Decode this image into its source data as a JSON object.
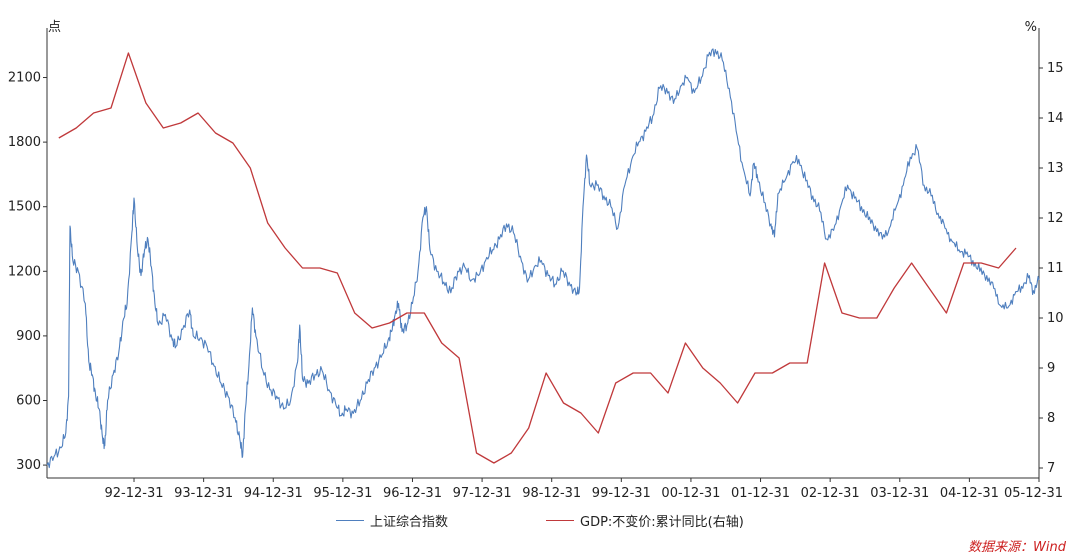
{
  "chart_data": {
    "type": "line",
    "left_unit": "点",
    "right_unit": "%",
    "x_tick_labels": [
      "92-12-31",
      "93-12-31",
      "94-12-31",
      "95-12-31",
      "96-12-31",
      "97-12-31",
      "98-12-31",
      "99-12-31",
      "00-12-31",
      "01-12-31",
      "02-12-31",
      "03-12-31",
      "04-12-31",
      "05-12-31"
    ],
    "x_range": [
      1991.75,
      2006.0
    ],
    "y_left": {
      "ticks": [
        300,
        600,
        900,
        1200,
        1500,
        1800,
        2100
      ],
      "range": [
        240,
        2330
      ]
    },
    "y_right": {
      "ticks": [
        7,
        8,
        9,
        10,
        11,
        12,
        13,
        14,
        15
      ],
      "range": [
        6.8,
        15.8
      ]
    },
    "grid": false,
    "legend_position": "bottom",
    "series": [
      {
        "name": "上证综合指数",
        "axis": "left",
        "color": "#4f7fbe",
        "points": [
          [
            1991.75,
            300
          ],
          [
            1991.85,
            340
          ],
          [
            1991.95,
            380
          ],
          [
            1992.02,
            450
          ],
          [
            1992.06,
            620
          ],
          [
            1992.08,
            1410
          ],
          [
            1992.12,
            1250
          ],
          [
            1992.2,
            1200
          ],
          [
            1992.3,
            1050
          ],
          [
            1992.35,
            780
          ],
          [
            1992.4,
            720
          ],
          [
            1992.45,
            620
          ],
          [
            1992.5,
            560
          ],
          [
            1992.55,
            420
          ],
          [
            1992.58,
            390
          ],
          [
            1992.62,
            600
          ],
          [
            1992.7,
            720
          ],
          [
            1992.78,
            820
          ],
          [
            1992.85,
            980
          ],
          [
            1992.9,
            1050
          ],
          [
            1992.97,
            1380
          ],
          [
            1993.0,
            1540
          ],
          [
            1993.05,
            1300
          ],
          [
            1993.1,
            1180
          ],
          [
            1993.15,
            1300
          ],
          [
            1993.2,
            1350
          ],
          [
            1993.25,
            1220
          ],
          [
            1993.3,
            1050
          ],
          [
            1993.35,
            950
          ],
          [
            1993.45,
            1000
          ],
          [
            1993.55,
            880
          ],
          [
            1993.6,
            850
          ],
          [
            1993.7,
            930
          ],
          [
            1993.8,
            1020
          ],
          [
            1993.85,
            900
          ],
          [
            1993.95,
            890
          ],
          [
            1994.05,
            850
          ],
          [
            1994.15,
            760
          ],
          [
            1994.25,
            680
          ],
          [
            1994.35,
            620
          ],
          [
            1994.45,
            520
          ],
          [
            1994.52,
            420
          ],
          [
            1994.56,
            340
          ],
          [
            1994.6,
            560
          ],
          [
            1994.65,
            760
          ],
          [
            1994.7,
            1030
          ],
          [
            1994.75,
            900
          ],
          [
            1994.85,
            740
          ],
          [
            1994.95,
            650
          ],
          [
            1995.05,
            620
          ],
          [
            1995.15,
            560
          ],
          [
            1995.25,
            600
          ],
          [
            1995.35,
            780
          ],
          [
            1995.38,
            950
          ],
          [
            1995.42,
            700
          ],
          [
            1995.5,
            680
          ],
          [
            1995.6,
            720
          ],
          [
            1995.7,
            740
          ],
          [
            1995.8,
            650
          ],
          [
            1995.9,
            580
          ],
          [
            1995.98,
            530
          ],
          [
            1996.05,
            560
          ],
          [
            1996.15,
            540
          ],
          [
            1996.25,
            600
          ],
          [
            1996.35,
            680
          ],
          [
            1996.45,
            750
          ],
          [
            1996.55,
            800
          ],
          [
            1996.65,
            880
          ],
          [
            1996.7,
            920
          ],
          [
            1996.75,
            1000
          ],
          [
            1996.8,
            1050
          ],
          [
            1996.85,
            920
          ],
          [
            1996.92,
            950
          ],
          [
            1997.0,
            1050
          ],
          [
            1997.08,
            1200
          ],
          [
            1997.15,
            1450
          ],
          [
            1997.2,
            1500
          ],
          [
            1997.25,
            1300
          ],
          [
            1997.35,
            1200
          ],
          [
            1997.45,
            1150
          ],
          [
            1997.55,
            1100
          ],
          [
            1997.65,
            1200
          ],
          [
            1997.75,
            1220
          ],
          [
            1997.85,
            1160
          ],
          [
            1997.95,
            1180
          ],
          [
            1998.05,
            1250
          ],
          [
            1998.15,
            1300
          ],
          [
            1998.25,
            1350
          ],
          [
            1998.35,
            1420
          ],
          [
            1998.45,
            1380
          ],
          [
            1998.55,
            1270
          ],
          [
            1998.65,
            1150
          ],
          [
            1998.75,
            1220
          ],
          [
            1998.85,
            1250
          ],
          [
            1998.95,
            1180
          ],
          [
            1999.05,
            1140
          ],
          [
            1999.15,
            1200
          ],
          [
            1999.25,
            1150
          ],
          [
            1999.35,
            1090
          ],
          [
            1999.4,
            1120
          ],
          [
            1999.45,
            1500
          ],
          [
            1999.5,
            1740
          ],
          [
            1999.55,
            1600
          ],
          [
            1999.65,
            1600
          ],
          [
            1999.75,
            1550
          ],
          [
            1999.85,
            1500
          ],
          [
            1999.95,
            1400
          ],
          [
            2000.05,
            1600
          ],
          [
            2000.15,
            1720
          ],
          [
            2000.25,
            1800
          ],
          [
            2000.35,
            1850
          ],
          [
            2000.45,
            1920
          ],
          [
            2000.55,
            2050
          ],
          [
            2000.65,
            2050
          ],
          [
            2000.75,
            1980
          ],
          [
            2000.85,
            2060
          ],
          [
            2000.95,
            2100
          ],
          [
            2001.05,
            2030
          ],
          [
            2001.15,
            2100
          ],
          [
            2001.25,
            2200
          ],
          [
            2001.35,
            2230
          ],
          [
            2001.45,
            2180
          ],
          [
            2001.55,
            2050
          ],
          [
            2001.65,
            1850
          ],
          [
            2001.75,
            1680
          ],
          [
            2001.85,
            1550
          ],
          [
            2001.9,
            1700
          ],
          [
            2001.95,
            1650
          ],
          [
            2002.05,
            1520
          ],
          [
            2002.15,
            1420
          ],
          [
            2002.2,
            1360
          ],
          [
            2002.25,
            1560
          ],
          [
            2002.35,
            1620
          ],
          [
            2002.45,
            1700
          ],
          [
            2002.55,
            1720
          ],
          [
            2002.65,
            1620
          ],
          [
            2002.75,
            1550
          ],
          [
            2002.85,
            1480
          ],
          [
            2002.95,
            1350
          ],
          [
            2003.05,
            1390
          ],
          [
            2003.15,
            1500
          ],
          [
            2003.25,
            1600
          ],
          [
            2003.35,
            1540
          ],
          [
            2003.45,
            1500
          ],
          [
            2003.55,
            1440
          ],
          [
            2003.65,
            1410
          ],
          [
            2003.75,
            1350
          ],
          [
            2003.85,
            1400
          ],
          [
            2003.95,
            1500
          ],
          [
            2004.05,
            1600
          ],
          [
            2004.15,
            1730
          ],
          [
            2004.25,
            1770
          ],
          [
            2004.35,
            1600
          ],
          [
            2004.45,
            1550
          ],
          [
            2004.55,
            1470
          ],
          [
            2004.65,
            1400
          ],
          [
            2004.75,
            1340
          ],
          [
            2004.85,
            1300
          ],
          [
            2004.95,
            1280
          ],
          [
            2005.05,
            1250
          ],
          [
            2005.15,
            1200
          ],
          [
            2005.25,
            1180
          ],
          [
            2005.35,
            1120
          ],
          [
            2005.45,
            1040
          ],
          [
            2005.55,
            1030
          ],
          [
            2005.65,
            1090
          ],
          [
            2005.75,
            1130
          ],
          [
            2005.85,
            1170
          ],
          [
            2005.92,
            1110
          ],
          [
            2006.0,
            1160
          ]
        ]
      },
      {
        "name": "GDP:不变价:累计同比(右轴)",
        "axis": "right",
        "color": "#c0393b",
        "points": [
          [
            1991.92,
            13.6
          ],
          [
            1992.17,
            13.8
          ],
          [
            1992.42,
            14.1
          ],
          [
            1992.67,
            14.2
          ],
          [
            1992.92,
            15.3
          ],
          [
            1993.17,
            14.3
          ],
          [
            1993.42,
            13.8
          ],
          [
            1993.67,
            13.9
          ],
          [
            1993.92,
            14.1
          ],
          [
            1994.17,
            13.7
          ],
          [
            1994.42,
            13.5
          ],
          [
            1994.67,
            13.0
          ],
          [
            1994.92,
            11.9
          ],
          [
            1995.17,
            11.4
          ],
          [
            1995.42,
            11.0
          ],
          [
            1995.67,
            11.0
          ],
          [
            1995.92,
            10.9
          ],
          [
            1996.17,
            10.1
          ],
          [
            1996.42,
            9.8
          ],
          [
            1996.67,
            9.9
          ],
          [
            1996.92,
            10.1
          ],
          [
            1997.17,
            10.1
          ],
          [
            1997.42,
            9.5
          ],
          [
            1997.67,
            9.2
          ],
          [
            1997.92,
            7.3
          ],
          [
            1998.17,
            7.1
          ],
          [
            1998.42,
            7.3
          ],
          [
            1998.67,
            7.8
          ],
          [
            1998.92,
            8.9
          ],
          [
            1999.17,
            8.3
          ],
          [
            1999.42,
            8.1
          ],
          [
            1999.67,
            7.7
          ],
          [
            1999.92,
            8.7
          ],
          [
            2000.17,
            8.9
          ],
          [
            2000.42,
            8.9
          ],
          [
            2000.67,
            8.5
          ],
          [
            2000.92,
            9.5
          ],
          [
            2001.17,
            9.0
          ],
          [
            2001.42,
            8.7
          ],
          [
            2001.67,
            8.3
          ],
          [
            2001.92,
            8.9
          ],
          [
            2002.17,
            8.9
          ],
          [
            2002.42,
            9.1
          ],
          [
            2002.67,
            9.1
          ],
          [
            2002.92,
            11.1
          ],
          [
            2003.17,
            10.1
          ],
          [
            2003.42,
            10.0
          ],
          [
            2003.67,
            10.0
          ],
          [
            2003.92,
            10.6
          ],
          [
            2004.17,
            11.1
          ],
          [
            2004.42,
            10.6
          ],
          [
            2004.67,
            10.1
          ],
          [
            2004.92,
            11.1
          ],
          [
            2005.17,
            11.1
          ],
          [
            2005.42,
            11.0
          ],
          [
            2005.67,
            11.4
          ]
        ]
      }
    ]
  },
  "legend": {
    "items": [
      {
        "label": "上证综合指数",
        "color": "#4f7fbe"
      },
      {
        "label": "GDP:不变价:累计同比(右轴)",
        "color": "#c0393b"
      }
    ]
  },
  "source_text": "数据来源：Wind",
  "source_color": "#cc1f1f"
}
